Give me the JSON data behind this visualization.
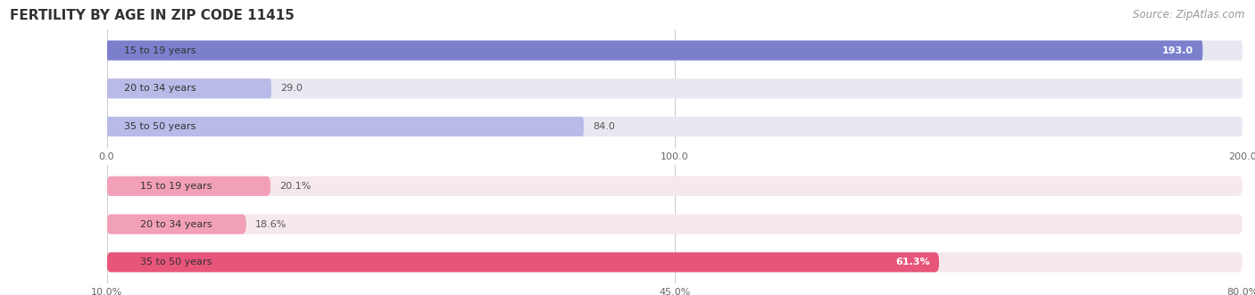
{
  "title": "FERTILITY BY AGE IN ZIP CODE 11415",
  "source": "Source: ZipAtlas.com",
  "top_chart": {
    "categories": [
      "15 to 19 years",
      "20 to 34 years",
      "35 to 50 years"
    ],
    "values": [
      193.0,
      29.0,
      84.0
    ],
    "xlim": [
      0,
      200
    ],
    "xticks": [
      0.0,
      100.0,
      200.0
    ],
    "xtick_labels": [
      "0.0",
      "100.0",
      "200.0"
    ],
    "bar_color_strong": "#7B7FCC",
    "bar_color_light": "#B8BBE8",
    "bar_bg_color": "#E8E8F0",
    "value_inside_color": "#ffffff",
    "value_outside_color": "#555555"
  },
  "bottom_chart": {
    "categories": [
      "15 to 19 years",
      "20 to 34 years",
      "35 to 50 years"
    ],
    "values": [
      20.1,
      18.6,
      61.3
    ],
    "xlim": [
      10.0,
      80.0
    ],
    "xticks": [
      10.0,
      45.0,
      80.0
    ],
    "xtick_labels": [
      "10.0%",
      "45.0%",
      "80.0%"
    ],
    "bar_color_strong": "#E8557A",
    "bar_color_light": "#F2A0B8",
    "bar_bg_color": "#F5E8EE",
    "value_inside_color": "#ffffff",
    "value_outside_color": "#555555"
  },
  "title_fontsize": 11,
  "source_fontsize": 8.5,
  "cat_fontsize": 8,
  "val_fontsize": 8,
  "tick_fontsize": 8,
  "bg_color": "#ffffff"
}
